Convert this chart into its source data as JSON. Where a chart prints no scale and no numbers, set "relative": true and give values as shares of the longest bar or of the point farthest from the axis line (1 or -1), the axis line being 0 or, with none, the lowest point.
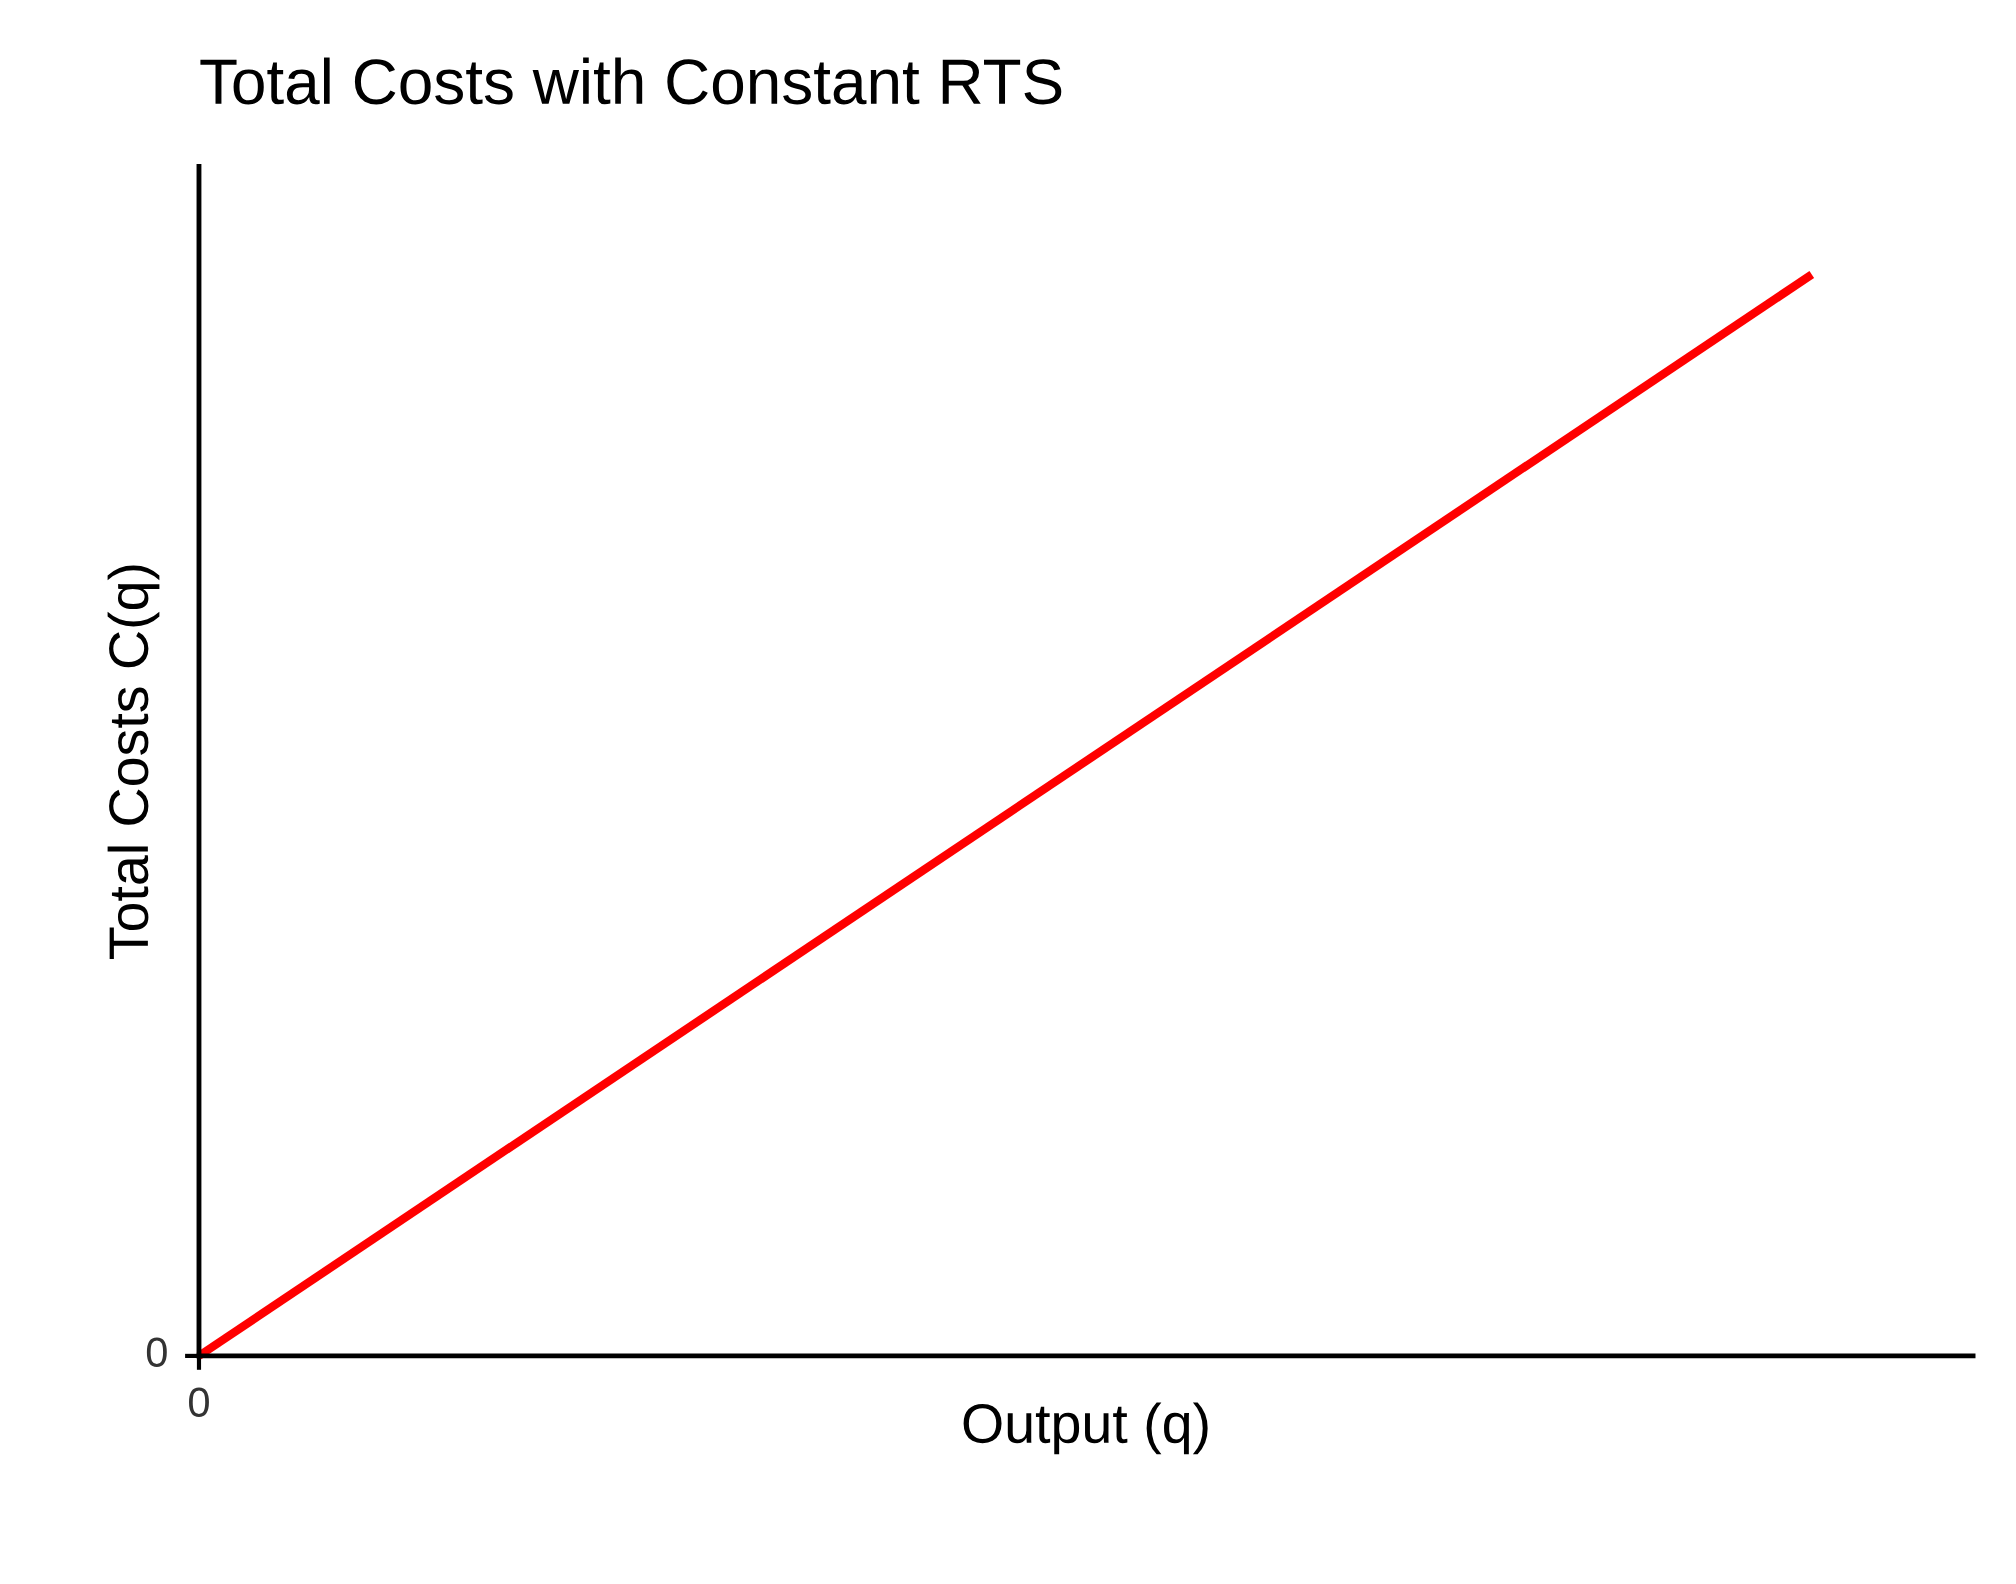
{
  "chart_data": {
    "type": "line",
    "title": "Total Costs with Constant RTS",
    "xlabel": "Output (q)",
    "ylabel": "Total Costs C(q)",
    "relative": true,
    "categories": [
      null,
      null
    ],
    "annotations": [
      "0",
      "0"
    ],
    "series": [
      {
        "color": "#ff0000",
        "values": [
          0,
          1
        ]
      }
    ],
    "legend": false,
    "marker": "none",
    "line_style": "solid"
  }
}
